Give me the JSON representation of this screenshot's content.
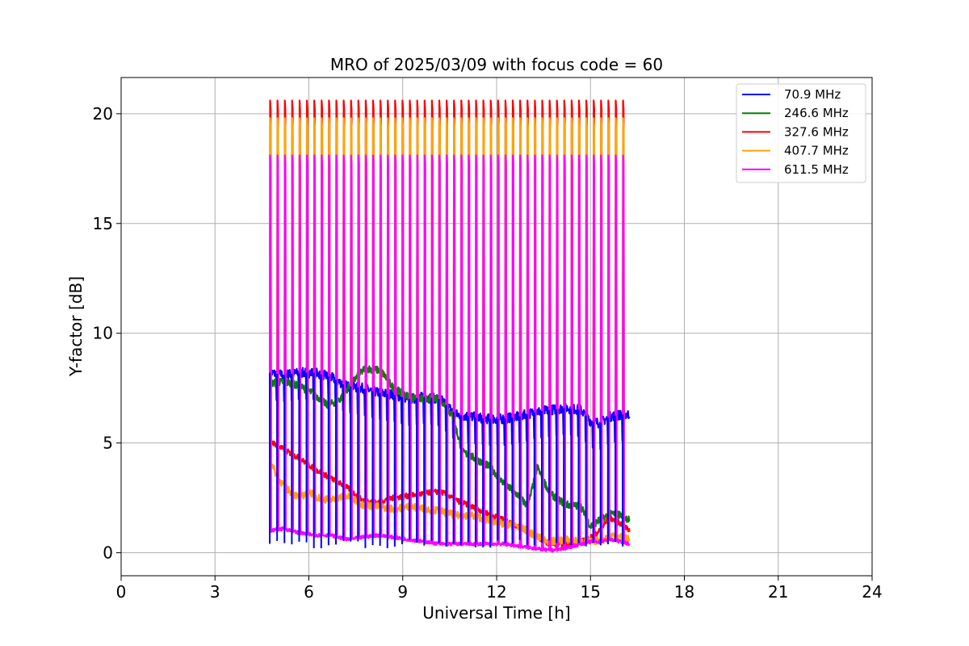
{
  "chart_data": {
    "type": "line",
    "title": "MRO of 2025/03/09 with focus code = 60",
    "xlabel": "Universal Time [h]",
    "ylabel": "Y-factor [dB]",
    "xlim": [
      0,
      24
    ],
    "ylim": [
      -1.05,
      21.65
    ],
    "xticks": [
      0,
      3,
      6,
      9,
      12,
      15,
      18,
      21,
      24
    ],
    "yticks": [
      0,
      5,
      10,
      15,
      20
    ],
    "grid": true,
    "legend_position": "top-right",
    "calibration_spikes": {
      "start": 4.75,
      "interval": 0.235,
      "count": 49,
      "peaks": {
        "327.6 MHz": 20.6,
        "407.7 MHz": 19.8,
        "611.5 MHz": 18.1
      }
    },
    "series": [
      {
        "name": " 70.9 MHz",
        "color": "#0000ff",
        "x": [
          4.75,
          5.2,
          5.7,
          6.2,
          6.7,
          7.2,
          7.7,
          8.2,
          8.7,
          9.2,
          9.7,
          10.2,
          10.7,
          11.2,
          11.7,
          12.2,
          12.7,
          13.2,
          13.7,
          14.2,
          14.7,
          15.0,
          15.3,
          15.6,
          16.0,
          16.25
        ],
        "y": [
          8.2,
          8.1,
          8.2,
          8.2,
          8.0,
          7.6,
          7.5,
          7.3,
          7.2,
          7.0,
          7.1,
          7.0,
          6.3,
          6.2,
          6.1,
          6.1,
          6.2,
          6.4,
          6.5,
          6.6,
          6.5,
          6.0,
          5.9,
          6.2,
          6.3,
          6.3
        ]
      },
      {
        "name": "246.6 MHz",
        "color": "#008000",
        "x": [
          4.75,
          5.2,
          5.7,
          6.2,
          6.6,
          7.0,
          7.4,
          7.8,
          8.3,
          8.7,
          9.2,
          9.7,
          10.2,
          10.6,
          10.9,
          11.3,
          11.8,
          12.2,
          12.7,
          13.0,
          13.3,
          13.7,
          14.2,
          14.7,
          15.0,
          15.3,
          15.7,
          16.0,
          16.25
        ],
        "y": [
          7.7,
          7.8,
          7.6,
          7.2,
          6.7,
          7.0,
          7.8,
          8.4,
          8.3,
          7.5,
          7.1,
          7.0,
          7.0,
          6.2,
          4.6,
          4.3,
          3.9,
          3.2,
          2.6,
          2.1,
          3.9,
          2.7,
          2.2,
          2.1,
          1.2,
          1.5,
          1.8,
          1.7,
          1.5
        ]
      },
      {
        "name": "327.6 MHz",
        "color": "#ff0000",
        "x": [
          4.75,
          5.2,
          5.7,
          6.2,
          6.7,
          7.2,
          7.7,
          8.2,
          8.7,
          9.2,
          9.7,
          10.2,
          10.7,
          11.2,
          11.7,
          12.2,
          12.7,
          13.2,
          13.7,
          14.2,
          14.7,
          15.0,
          15.3,
          15.6,
          16.0,
          16.25
        ],
        "y": [
          5.1,
          4.7,
          4.3,
          3.8,
          3.4,
          3.0,
          2.4,
          2.3,
          2.5,
          2.6,
          2.7,
          2.8,
          2.4,
          2.1,
          1.8,
          1.5,
          1.2,
          0.8,
          0.4,
          0.4,
          0.5,
          0.7,
          1.0,
          1.6,
          1.3,
          1.0
        ]
      },
      {
        "name": "407.7 MHz",
        "color": "#ffa500",
        "x": [
          4.75,
          5.0,
          5.3,
          5.7,
          6.0,
          6.3,
          6.7,
          7.2,
          7.7,
          8.2,
          8.7,
          9.2,
          9.7,
          10.2,
          10.7,
          11.2,
          11.7,
          12.2,
          12.7,
          13.2,
          13.7,
          14.2,
          14.7,
          15.0,
          15.4,
          15.7,
          16.0,
          16.25
        ],
        "y": [
          4.3,
          3.4,
          2.9,
          2.5,
          2.8,
          2.5,
          2.4,
          2.6,
          2.2,
          2.1,
          2.0,
          2.1,
          2.0,
          1.9,
          1.7,
          1.7,
          1.5,
          1.3,
          1.2,
          0.8,
          0.5,
          0.6,
          0.5,
          0.5,
          0.6,
          0.8,
          0.7,
          0.6
        ]
      },
      {
        "name": "611.5 MHz",
        "color": "#ff00ff",
        "x": [
          4.75,
          5.2,
          5.7,
          6.2,
          6.7,
          7.2,
          7.7,
          8.2,
          8.7,
          9.2,
          9.7,
          10.2,
          10.7,
          11.2,
          11.7,
          12.2,
          12.7,
          13.2,
          13.7,
          14.2,
          14.7,
          15.0,
          15.3,
          15.6,
          16.0,
          16.25
        ],
        "y": [
          1.0,
          1.1,
          0.9,
          0.8,
          0.8,
          0.6,
          0.7,
          0.8,
          0.7,
          0.6,
          0.5,
          0.4,
          0.4,
          0.4,
          0.4,
          0.4,
          0.3,
          0.2,
          0.1,
          0.2,
          0.4,
          0.5,
          0.5,
          0.6,
          0.5,
          0.4
        ]
      }
    ]
  }
}
